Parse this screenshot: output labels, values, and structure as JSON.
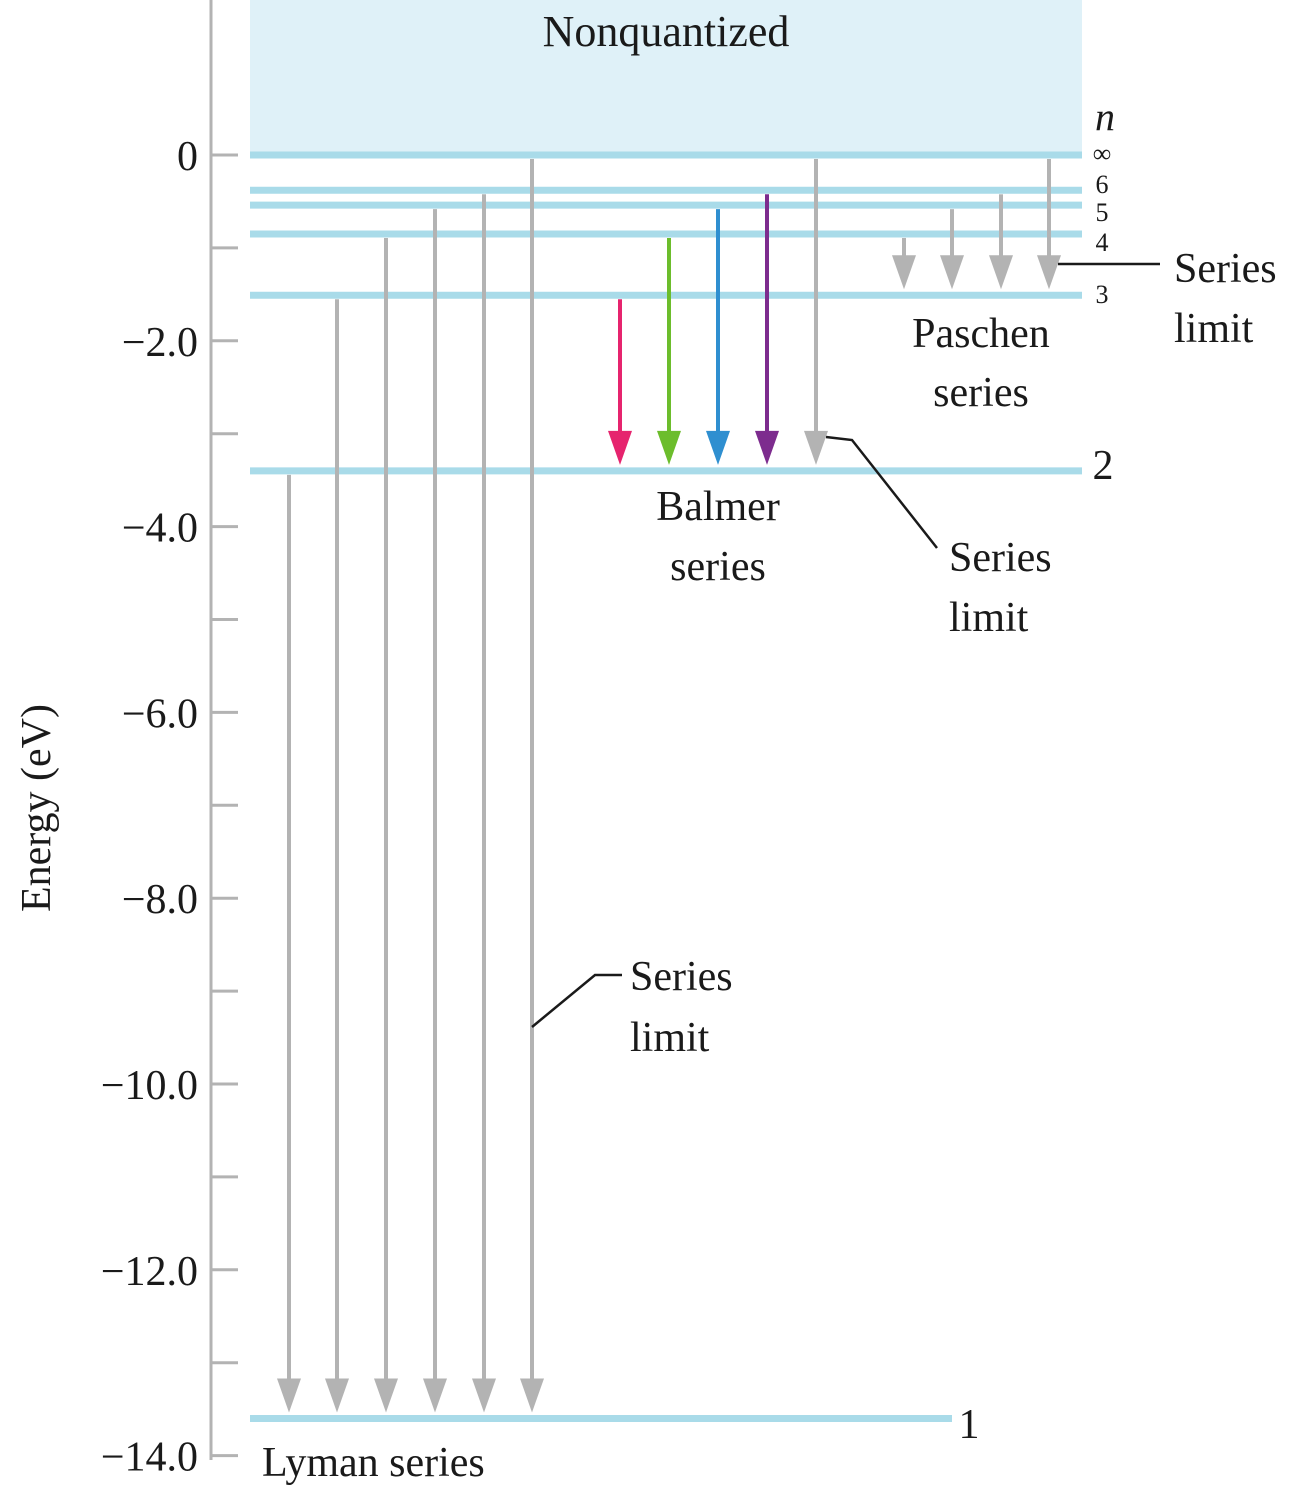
{
  "title": "Nonquantized",
  "axis": {
    "ylabel": "Energy (eV)",
    "ticks": [
      "0",
      "−2.0",
      "−4.0",
      "−6.0",
      "−8.0",
      "−10.0",
      "−12.0",
      "−14.0"
    ],
    "ylim": [
      -14.0,
      0
    ]
  },
  "n_symbol": "n",
  "levels": [
    {
      "n": "∞",
      "energy": 0
    },
    {
      "n": "6",
      "energy": -0.38
    },
    {
      "n": "5",
      "energy": -0.54
    },
    {
      "n": "4",
      "energy": -0.85
    },
    {
      "n": "3",
      "energy": -1.51
    },
    {
      "n": "2",
      "energy": -3.4
    },
    {
      "n": "1",
      "energy": -13.6
    }
  ],
  "series": {
    "lyman": {
      "label": "Lyman series",
      "series_limit": [
        "Series",
        "limit"
      ]
    },
    "balmer": {
      "label_line1": "Balmer",
      "label_line2": "series",
      "series_limit": [
        "Series",
        "limit"
      ]
    },
    "paschen": {
      "label_line1": "Paschen",
      "label_line2": "series",
      "series_limit": [
        "Series",
        "limit"
      ]
    }
  },
  "colors": {
    "level_line": "#a9dbe9",
    "continuum": "#dff1f8",
    "gray_arrow": "#b3b3b3",
    "balmer_red": "#e6246e",
    "balmer_green": "#6cbd2c",
    "balmer_blue": "#2f8fd0",
    "balmer_violet": "#7d2c8e"
  },
  "transitions": {
    "lyman": [
      {
        "from": "2",
        "to": "1"
      },
      {
        "from": "3",
        "to": "1"
      },
      {
        "from": "4",
        "to": "1"
      },
      {
        "from": "5",
        "to": "1"
      },
      {
        "from": "6",
        "to": "1"
      },
      {
        "from": "∞",
        "to": "1"
      }
    ],
    "balmer": [
      {
        "from": "3",
        "to": "2",
        "color": "balmer_red"
      },
      {
        "from": "4",
        "to": "2",
        "color": "balmer_green"
      },
      {
        "from": "5",
        "to": "2",
        "color": "balmer_blue"
      },
      {
        "from": "6",
        "to": "2",
        "color": "balmer_violet"
      },
      {
        "from": "∞",
        "to": "2",
        "color": "gray_arrow"
      }
    ],
    "paschen": [
      {
        "from": "4",
        "to": "3"
      },
      {
        "from": "5",
        "to": "3"
      },
      {
        "from": "6",
        "to": "3"
      },
      {
        "from": "∞",
        "to": "3"
      }
    ]
  }
}
